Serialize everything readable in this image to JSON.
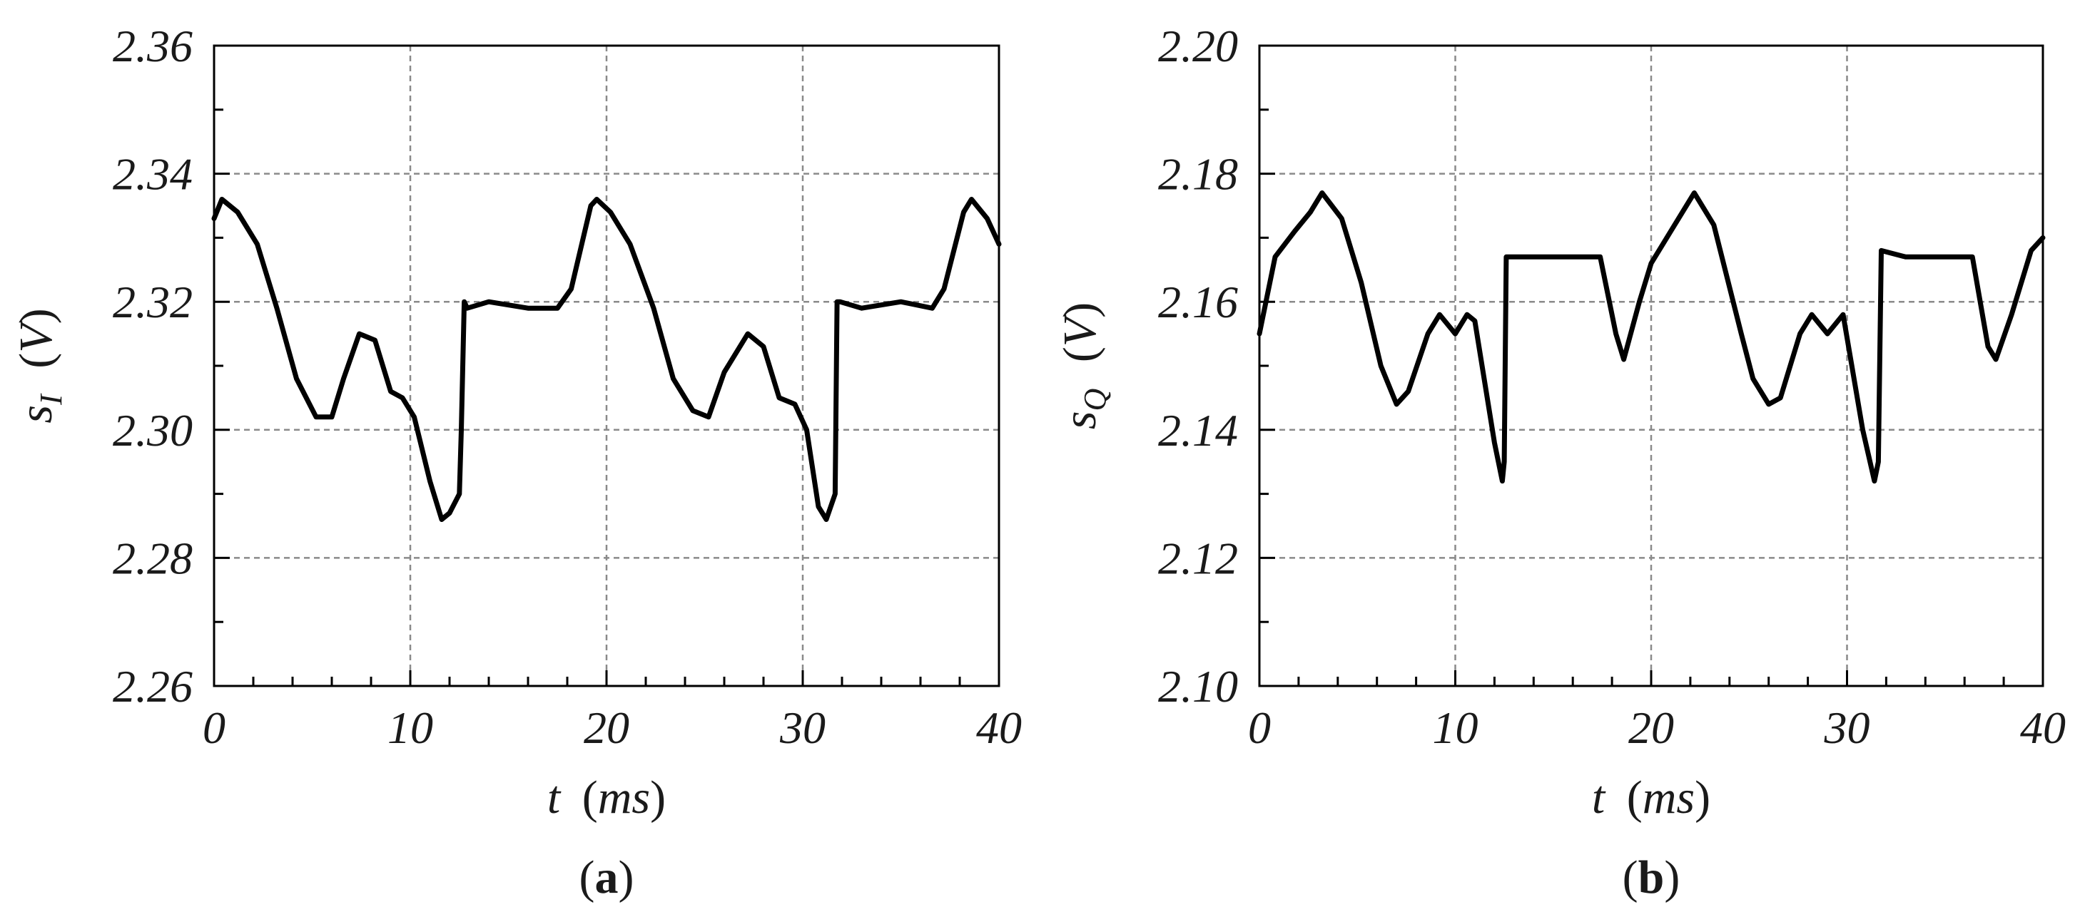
{
  "chart_data": [
    {
      "type": "line",
      "panel_label": "a",
      "xlabel_var": "t",
      "xlabel_unit": "ms",
      "ylabel_var": "s",
      "ylabel_sub": "I",
      "ylabel_unit": "V",
      "xlim": [
        0,
        40
      ],
      "ylim": [
        2.26,
        2.36
      ],
      "xticks": [
        0,
        10,
        20,
        30,
        40
      ],
      "xtick_labels": [
        "0",
        "10",
        "20",
        "30",
        "40"
      ],
      "yticks": [
        2.26,
        2.28,
        2.3,
        2.32,
        2.34,
        2.36
      ],
      "ytick_labels": [
        "2.26",
        "2.28",
        "2.30",
        "2.32",
        "2.34",
        "2.36"
      ],
      "grid": true,
      "series": [
        {
          "x": [
            0,
            0.4,
            1.2,
            2.2,
            3.2,
            4.2,
            5.2,
            6.0,
            6.6,
            7.4,
            8.2,
            9.0,
            9.6,
            10.2,
            11.0,
            11.6,
            12.0,
            12.5,
            12.6,
            12.75,
            12.9,
            14,
            16,
            17.5,
            18.2,
            19.2,
            19.5,
            20.2,
            21.2,
            22.4,
            23.4,
            24.4,
            25.2,
            26.0,
            27.2,
            28.0,
            28.8,
            29.6,
            30.2,
            30.8,
            31.2,
            31.65,
            31.75,
            31.9,
            33,
            35,
            36.6,
            37.2,
            38.2,
            38.6,
            39.4,
            40.0
          ],
          "y": [
            2.333,
            2.336,
            2.334,
            2.329,
            2.319,
            2.308,
            2.302,
            2.302,
            2.308,
            2.315,
            2.314,
            2.306,
            2.305,
            2.302,
            2.292,
            2.286,
            2.287,
            2.29,
            2.3,
            2.32,
            2.319,
            2.32,
            2.319,
            2.319,
            2.322,
            2.335,
            2.336,
            2.334,
            2.329,
            2.319,
            2.308,
            2.303,
            2.302,
            2.309,
            2.315,
            2.313,
            2.305,
            2.304,
            2.3,
            2.288,
            2.286,
            2.29,
            2.32,
            2.32,
            2.319,
            2.32,
            2.319,
            2.322,
            2.334,
            2.336,
            2.333,
            2.329
          ]
        }
      ]
    },
    {
      "type": "line",
      "panel_label": "b",
      "xlabel_var": "t",
      "xlabel_unit": "ms",
      "ylabel_var": "s",
      "ylabel_sub": "Q",
      "ylabel_unit": "V",
      "xlim": [
        0,
        40
      ],
      "ylim": [
        2.1,
        2.2
      ],
      "xticks": [
        0,
        10,
        20,
        30,
        40
      ],
      "xtick_labels": [
        "0",
        "10",
        "20",
        "30",
        "40"
      ],
      "yticks": [
        2.1,
        2.12,
        2.14,
        2.16,
        2.18,
        2.2
      ],
      "ytick_labels": [
        "2.10",
        "2.12",
        "2.14",
        "2.16",
        "2.18",
        "2.20"
      ],
      "grid": true,
      "series": [
        {
          "x": [
            0,
            0.8,
            1.8,
            2.6,
            3.2,
            4.2,
            5.2,
            6.2,
            7.0,
            7.6,
            8.6,
            9.2,
            10.0,
            10.6,
            11.0,
            12.0,
            12.4,
            12.5,
            12.6,
            12.75,
            14,
            16,
            17.4,
            18.2,
            18.6,
            19.4,
            20.0,
            21.0,
            22.2,
            23.2,
            24.6,
            25.2,
            26.0,
            26.6,
            27.6,
            28.2,
            29.0,
            29.8,
            30.8,
            31.4,
            31.6,
            31.75,
            33,
            35,
            36.4,
            37.2,
            37.6,
            38.4,
            39.4,
            40.0
          ],
          "y": [
            2.155,
            2.167,
            2.171,
            2.174,
            2.177,
            2.173,
            2.163,
            2.15,
            2.144,
            2.146,
            2.155,
            2.158,
            2.155,
            2.158,
            2.157,
            2.138,
            2.132,
            2.135,
            2.167,
            2.167,
            2.167,
            2.167,
            2.167,
            2.155,
            2.151,
            2.16,
            2.166,
            2.171,
            2.177,
            2.172,
            2.155,
            2.148,
            2.144,
            2.145,
            2.155,
            2.158,
            2.155,
            2.158,
            2.14,
            2.132,
            2.135,
            2.168,
            2.167,
            2.167,
            2.167,
            2.153,
            2.151,
            2.158,
            2.168,
            2.17
          ]
        }
      ]
    }
  ]
}
